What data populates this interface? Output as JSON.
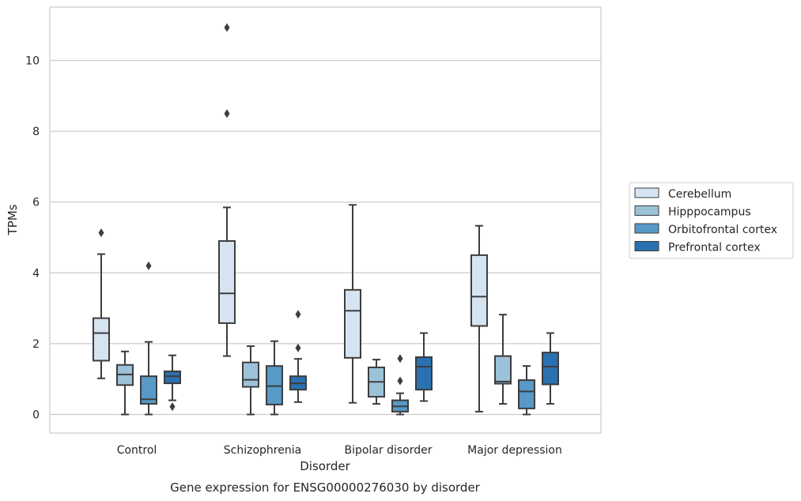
{
  "chart_data": {
    "type": "box",
    "categories": [
      "Control",
      "Schizophrenia",
      "Bipolar disorder",
      "Major depression"
    ],
    "xlabel": "Disorder",
    "ylabel": "TPMs",
    "caption": "Gene expression for ENSG00000276030 by disorder",
    "ylim": [
      -0.5,
      11.5
    ],
    "yticks": [
      "0",
      "2",
      "4",
      "6",
      "8",
      "10"
    ],
    "grid": "horizontal",
    "legend_position": "right",
    "series": [
      {
        "name": "Cerebellum",
        "color": "#d6e4f2",
        "boxes": [
          {
            "whislo": 1.02,
            "q1": 1.52,
            "med": 2.3,
            "q3": 2.72,
            "whishi": 4.53,
            "fliers": [
              5.13
            ]
          },
          {
            "whislo": 1.65,
            "q1": 2.58,
            "med": 3.42,
            "q3": 4.9,
            "whishi": 5.85,
            "fliers": [
              8.5,
              10.93
            ]
          },
          {
            "whislo": 0.33,
            "q1": 1.6,
            "med": 2.93,
            "q3": 3.52,
            "whishi": 5.92,
            "fliers": []
          },
          {
            "whislo": 0.08,
            "q1": 2.5,
            "med": 3.33,
            "q3": 4.5,
            "whishi": 5.33,
            "fliers": []
          }
        ]
      },
      {
        "name": "Hipppocampus",
        "color": "#9cc2da",
        "boxes": [
          {
            "whislo": 0.0,
            "q1": 0.83,
            "med": 1.13,
            "q3": 1.4,
            "whishi": 1.78,
            "fliers": []
          },
          {
            "whislo": 0.0,
            "q1": 0.78,
            "med": 0.98,
            "q3": 1.47,
            "whishi": 1.93,
            "fliers": []
          },
          {
            "whislo": 0.3,
            "q1": 0.5,
            "med": 0.92,
            "q3": 1.33,
            "whishi": 1.55,
            "fliers": []
          },
          {
            "whislo": 0.3,
            "q1": 0.87,
            "med": 0.93,
            "q3": 1.65,
            "whishi": 2.82,
            "fliers": []
          }
        ]
      },
      {
        "name": "Orbitofrontal cortex",
        "color": "#5799c7",
        "boxes": [
          {
            "whislo": 0.0,
            "q1": 0.3,
            "med": 0.43,
            "q3": 1.08,
            "whishi": 2.05,
            "fliers": [
              4.2
            ]
          },
          {
            "whislo": 0.0,
            "q1": 0.28,
            "med": 0.8,
            "q3": 1.37,
            "whishi": 2.07,
            "fliers": []
          },
          {
            "whislo": 0.0,
            "q1": 0.08,
            "med": 0.23,
            "q3": 0.4,
            "whishi": 0.6,
            "fliers": [
              0.95,
              1.58
            ]
          },
          {
            "whislo": 0.0,
            "q1": 0.17,
            "med": 0.65,
            "q3": 0.97,
            "whishi": 1.37,
            "fliers": []
          }
        ]
      },
      {
        "name": "Prefrontal cortex",
        "color": "#2a71b1",
        "boxes": [
          {
            "whislo": 0.4,
            "q1": 0.88,
            "med": 1.08,
            "q3": 1.22,
            "whishi": 1.67,
            "fliers": [
              0.22
            ]
          },
          {
            "whislo": 0.35,
            "q1": 0.7,
            "med": 0.88,
            "q3": 1.08,
            "whishi": 1.57,
            "fliers": [
              1.88,
              2.83
            ]
          },
          {
            "whislo": 0.38,
            "q1": 0.7,
            "med": 1.35,
            "q3": 1.62,
            "whishi": 2.3,
            "fliers": []
          },
          {
            "whislo": 0.3,
            "q1": 0.85,
            "med": 1.35,
            "q3": 1.75,
            "whishi": 2.3,
            "fliers": []
          }
        ]
      }
    ]
  }
}
